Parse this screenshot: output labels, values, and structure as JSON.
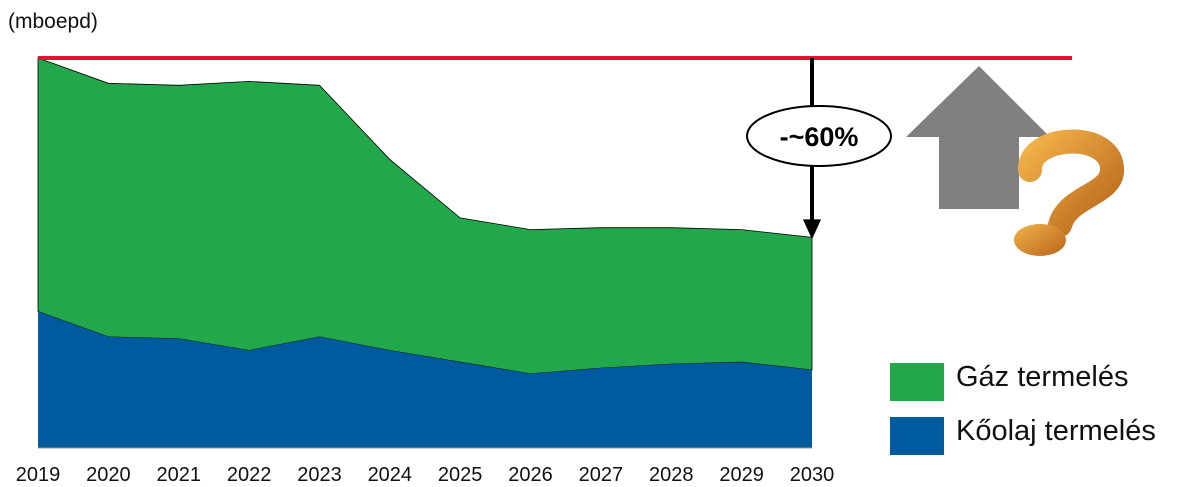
{
  "unit_label": "(mboepd)",
  "annotation": "-~60%",
  "colors": {
    "gas": "#22a84a",
    "oil": "#005a9e",
    "target_line": "#e8102e",
    "arrow_up": "#808080",
    "question_mark": "#d98a2a"
  },
  "icons": [
    "gray-up-arrow-icon",
    "question-mark-icon"
  ],
  "chart_data": {
    "type": "area",
    "stacked": true,
    "x": [
      "2019",
      "2020",
      "2021",
      "2022",
      "2023",
      "2024",
      "2025",
      "2026",
      "2027",
      "2028",
      "2029",
      "2030"
    ],
    "series": [
      {
        "name": "Kőolaj termelés",
        "values": [
          35,
          28.5,
          28,
          25,
          28.5,
          25,
          22,
          19,
          20.5,
          21.5,
          22,
          20
        ]
      },
      {
        "name": "Gáz termelés",
        "values": [
          65,
          65,
          65,
          69,
          64.5,
          49,
          37,
          37,
          36,
          35,
          34,
          34
        ]
      }
    ],
    "reference_line": {
      "value": 100
    },
    "ylim": [
      0,
      100
    ],
    "xlabel": "",
    "ylabel": "",
    "grid": false,
    "legend": "bottom-right"
  }
}
